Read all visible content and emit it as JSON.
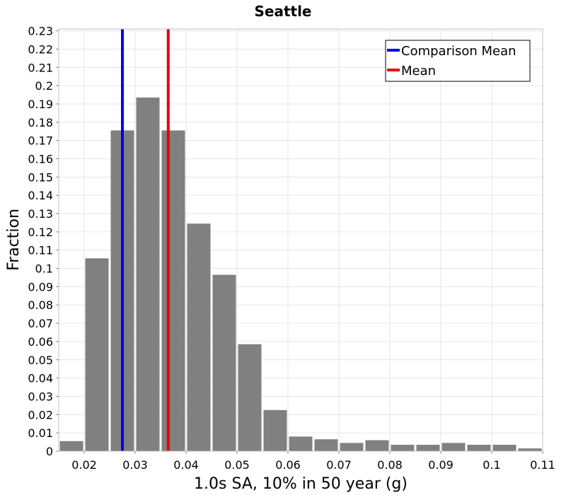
{
  "chart_data": {
    "type": "bar",
    "title": "Seattle",
    "xlabel": "1.0s SA, 10% in 50 year (g)",
    "ylabel": "Fraction",
    "xlim": [
      0.015,
      0.11
    ],
    "ylim": [
      0,
      0.231
    ],
    "x_ticks": [
      "0.02",
      "0.03",
      "0.04",
      "0.05",
      "0.06",
      "0.07",
      "0.08",
      "0.09",
      "0.1",
      "0.11"
    ],
    "y_ticks": [
      "0",
      "0.01",
      "0.02",
      "0.03",
      "0.04",
      "0.05",
      "0.06",
      "0.07",
      "0.08",
      "0.09",
      "0.1",
      "0.11",
      "0.12",
      "0.13",
      "0.14",
      "0.15",
      "0.16",
      "0.17",
      "0.18",
      "0.19",
      "0.2",
      "0.21",
      "0.22",
      "0.23"
    ],
    "bin_width": 0.005,
    "bin_centers": [
      0.0175,
      0.0225,
      0.0275,
      0.0325,
      0.0375,
      0.0425,
      0.0475,
      0.0525,
      0.0575,
      0.0625,
      0.0675,
      0.0725,
      0.0775,
      0.0825,
      0.0875,
      0.0925,
      0.0975,
      0.1025,
      0.1075
    ],
    "values": [
      0.0055,
      0.1055,
      0.1755,
      0.1935,
      0.1755,
      0.1245,
      0.0965,
      0.0585,
      0.0225,
      0.008,
      0.0065,
      0.0045,
      0.006,
      0.0035,
      0.0035,
      0.0045,
      0.0035,
      0.0035,
      0.0015
    ],
    "bar_color": "#808080",
    "vertical_lines": [
      {
        "name": "Comparison Mean",
        "x": 0.0275,
        "color": "#0000ee"
      },
      {
        "name": "Mean",
        "x": 0.0365,
        "color": "#ee0000"
      }
    ],
    "legend_position": "top-right",
    "grid": true
  }
}
